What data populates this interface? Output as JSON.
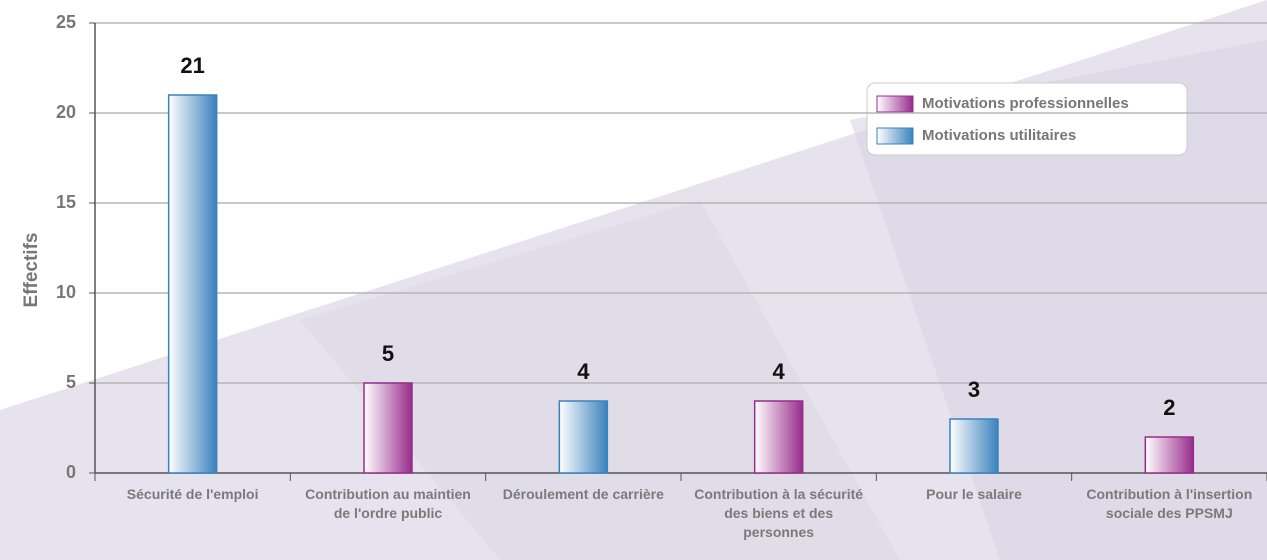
{
  "chart_data": {
    "type": "bar",
    "y_label": "Effectifs",
    "categories": [
      "Sécurité de l'emploi",
      "Contribution au maintien de l'ordre public",
      "Déroulement de carrière",
      "Contribution à la sécurité des biens et des personnes",
      "Pour le salaire",
      "Contribution à l'insertion sociale des PPSMJ"
    ],
    "series": [
      {
        "name": "Motivations professionnelles",
        "color": "#982c8c",
        "values": [
          null,
          5,
          null,
          4,
          null,
          2
        ]
      },
      {
        "name": "Motivations utilitaires",
        "color": "#3a82bd",
        "values": [
          21,
          null,
          4,
          null,
          3,
          null
        ]
      }
    ],
    "ylim": [
      0,
      25
    ],
    "yticks": [
      0,
      5,
      10,
      15,
      20,
      25
    ],
    "grid": true,
    "legend": "upper right"
  }
}
